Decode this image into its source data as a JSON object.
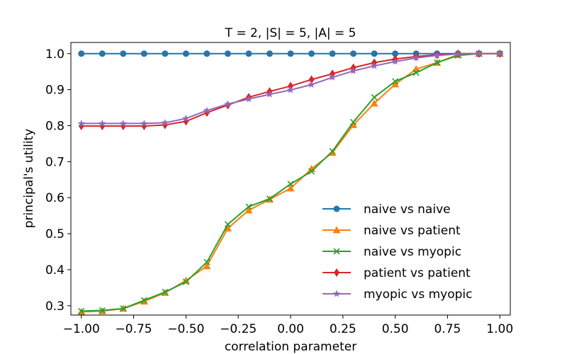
{
  "chart_data": {
    "type": "line",
    "title": "T = 2, |S| = 5, |A| = 5",
    "xlabel": "correlation parameter",
    "ylabel": "principal's utility",
    "xlim": [
      -1.05,
      1.05
    ],
    "ylim": [
      0.274,
      1.031
    ],
    "xticks": [
      -1.0,
      -0.75,
      -0.5,
      -0.25,
      0.0,
      0.25,
      0.5,
      0.75,
      1.0
    ],
    "xtick_labels": [
      "−1.00",
      "−0.75",
      "−0.50",
      "−0.25",
      "0.00",
      "0.25",
      "0.50",
      "0.75",
      "1.00"
    ],
    "yticks": [
      0.3,
      0.4,
      0.5,
      0.6,
      0.7,
      0.8,
      0.9,
      1.0
    ],
    "ytick_labels": [
      "0.3",
      "0.4",
      "0.5",
      "0.6",
      "0.7",
      "0.8",
      "0.9",
      "1.0"
    ],
    "grid": false,
    "legend_position": "lower-right",
    "x": [
      -1.0,
      -0.9,
      -0.8,
      -0.7,
      -0.6,
      -0.5,
      -0.4,
      -0.3,
      -0.2,
      -0.1,
      0.0,
      0.1,
      0.2,
      0.3,
      0.4,
      0.5,
      0.6,
      0.7,
      0.8,
      0.9,
      1.0
    ],
    "series": [
      {
        "name": "naive vs naive",
        "color": "#1f77b4",
        "marker": "circle",
        "values": [
          1.0,
          1.0,
          1.0,
          1.0,
          1.0,
          1.0,
          1.0,
          1.0,
          1.0,
          1.0,
          1.0,
          1.0,
          1.0,
          1.0,
          1.0,
          1.0,
          1.0,
          1.0,
          1.0,
          1.0,
          1.0
        ]
      },
      {
        "name": "naive vs patient",
        "color": "#ff7f0e",
        "marker": "triangle",
        "values": [
          0.283,
          0.285,
          0.292,
          0.312,
          0.336,
          0.37,
          0.41,
          0.515,
          0.565,
          0.595,
          0.626,
          0.68,
          0.725,
          0.802,
          0.862,
          0.915,
          0.957,
          0.975,
          0.997,
          1.0,
          1.0
        ]
      },
      {
        "name": "naive vs myopic",
        "color": "#2ca02c",
        "marker": "x",
        "values": [
          0.285,
          0.287,
          0.292,
          0.315,
          0.338,
          0.366,
          0.421,
          0.526,
          0.575,
          0.597,
          0.638,
          0.673,
          0.729,
          0.81,
          0.879,
          0.923,
          0.947,
          0.975,
          0.995,
          1.0,
          1.0
        ]
      },
      {
        "name": "patient vs patient",
        "color": "#d62728",
        "marker": "diamond",
        "values": [
          0.799,
          0.799,
          0.799,
          0.799,
          0.802,
          0.812,
          0.836,
          0.857,
          0.879,
          0.895,
          0.91,
          0.928,
          0.944,
          0.961,
          0.975,
          0.985,
          0.992,
          0.997,
          1.0,
          1.0,
          1.0
        ]
      },
      {
        "name": "myopic vs myopic",
        "color": "#9467bd",
        "marker": "star",
        "values": [
          0.806,
          0.806,
          0.806,
          0.806,
          0.808,
          0.82,
          0.842,
          0.86,
          0.874,
          0.887,
          0.899,
          0.914,
          0.934,
          0.952,
          0.966,
          0.978,
          0.988,
          0.995,
          0.999,
          1.0,
          1.0
        ]
      }
    ]
  }
}
